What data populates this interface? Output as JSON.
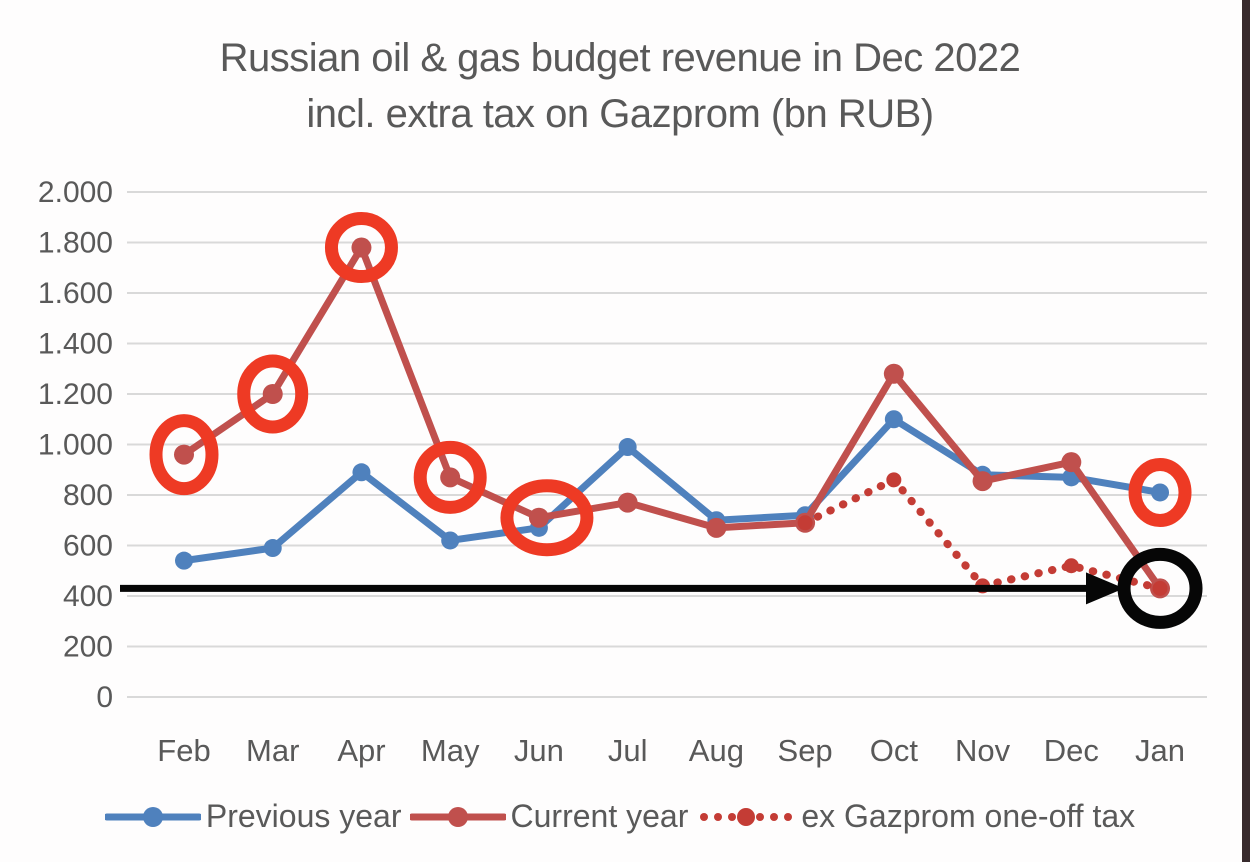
{
  "title": {
    "line1": "Russian oil & gas budget revenue in Dec 2022",
    "line2": "incl. extra tax on Gazprom (bn RUB)"
  },
  "colors": {
    "title_text": "#595959",
    "axis_text": "#595959",
    "gridline": "#d9d9d9",
    "previous_year": "#4f81bd",
    "current_year": "#c0504d",
    "ex_gazprom": "#c43c35",
    "annotation_red": "#ee3a24",
    "annotation_black": "#060606",
    "photo_edge": "#382b2d"
  },
  "chart_data": {
    "type": "line",
    "title": "Russian oil & gas budget revenue in Dec 2022 incl. extra tax on Gazprom (bn RUB)",
    "xlabel": "",
    "ylabel": "",
    "categories": [
      "Feb",
      "Mar",
      "Apr",
      "May",
      "Jun",
      "Jul",
      "Aug",
      "Sep",
      "Oct",
      "Nov",
      "Dec",
      "Jan"
    ],
    "series": [
      {
        "name": "Previous year",
        "color": "#4f81bd",
        "style": "solid",
        "values": [
          540,
          590,
          890,
          620,
          670,
          990,
          700,
          720,
          1100,
          880,
          870,
          810
        ]
      },
      {
        "name": "Current year",
        "color": "#c0504d",
        "style": "solid",
        "values": [
          960,
          1200,
          1780,
          870,
          710,
          770,
          670,
          690,
          1280,
          855,
          930,
          430
        ]
      },
      {
        "name": "ex Gazprom one-off tax",
        "color": "#c43c35",
        "style": "dotted",
        "values": [
          null,
          null,
          null,
          null,
          null,
          null,
          null,
          690,
          860,
          440,
          520,
          430
        ]
      }
    ],
    "ylim": [
      0,
      2000
    ],
    "ytick_step": 200,
    "ytick_labels": [
      "0",
      "200",
      "400",
      "600",
      "800",
      "1.000",
      "1.200",
      "1.400",
      "1.600",
      "1.800",
      "2.000"
    ],
    "grid": true,
    "legend_position": "bottom",
    "annotations": {
      "red_circles": [
        {
          "series": 1,
          "cat": 0,
          "rx": 28,
          "ry": 34
        },
        {
          "series": 1,
          "cat": 1,
          "rx": 29,
          "ry": 33
        },
        {
          "series": 1,
          "cat": 2,
          "rx": 30,
          "ry": 29
        },
        {
          "series": 1,
          "cat": 3,
          "rx": 30,
          "ry": 30
        },
        {
          "series": 1,
          "cat": 4,
          "rx": 40,
          "ry": 32,
          "dx": 8
        },
        {
          "series": 0,
          "cat": 11,
          "rx": 25,
          "ry": 28
        }
      ],
      "black_circle": {
        "series": 1,
        "cat": 11,
        "rx": 36,
        "ry": 34
      },
      "arrow": {
        "value": 430,
        "x_from": 120
      }
    }
  }
}
